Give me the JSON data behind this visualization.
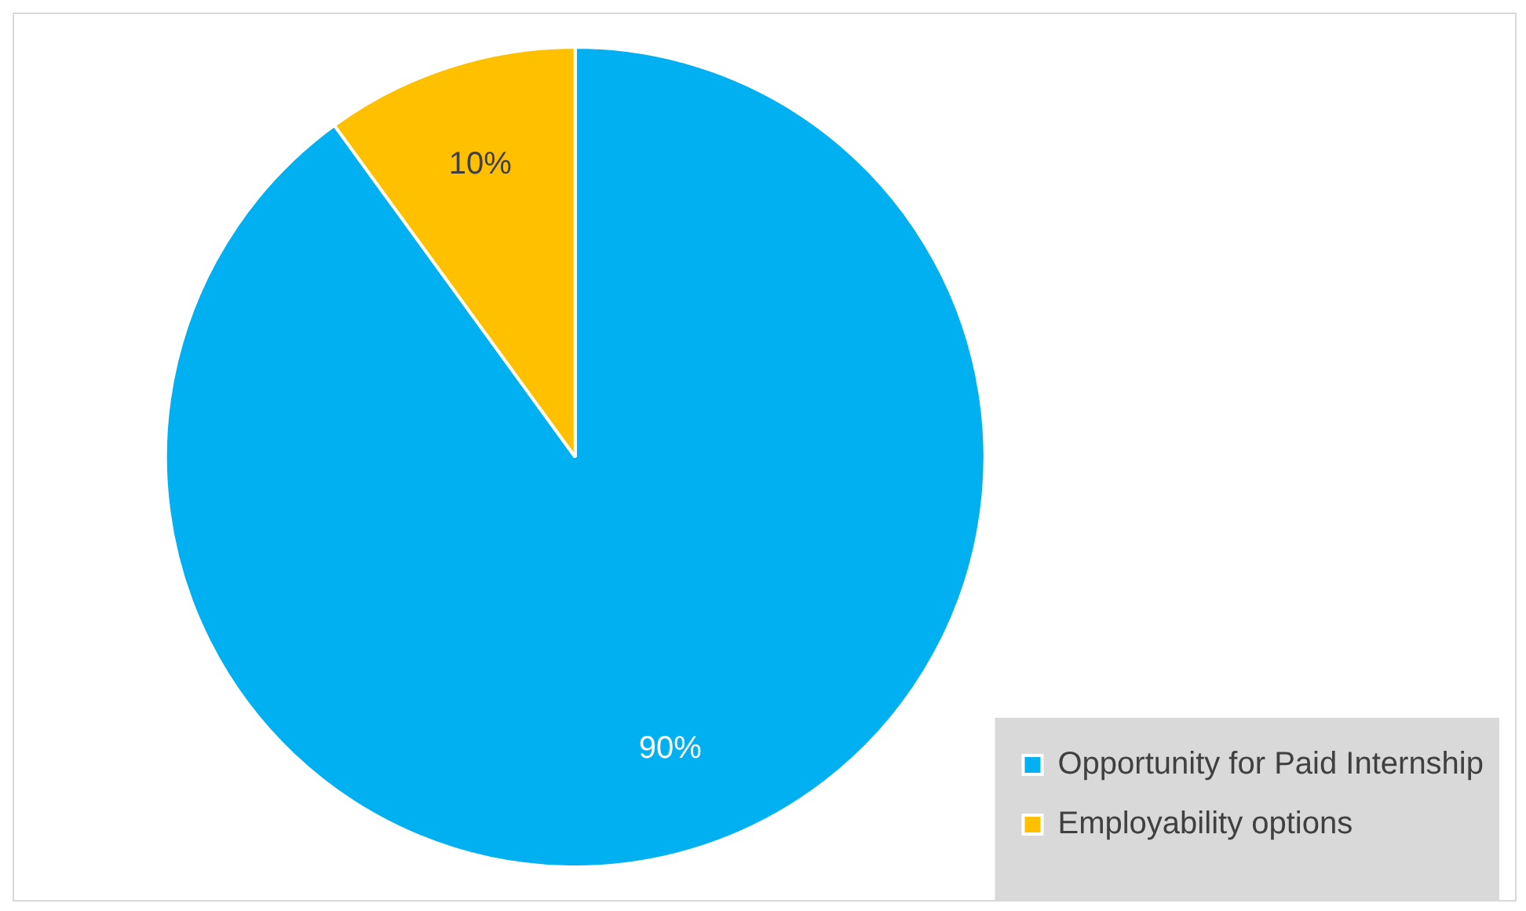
{
  "chart_data": {
    "type": "pie",
    "categories": [
      "Opportunity for Paid Internship",
      "Employability options"
    ],
    "values": [
      90,
      10
    ],
    "colors": [
      "#00b0f0",
      "#ffc000"
    ],
    "value_labels": [
      "90%",
      "10%"
    ],
    "legend": "bottom right"
  }
}
